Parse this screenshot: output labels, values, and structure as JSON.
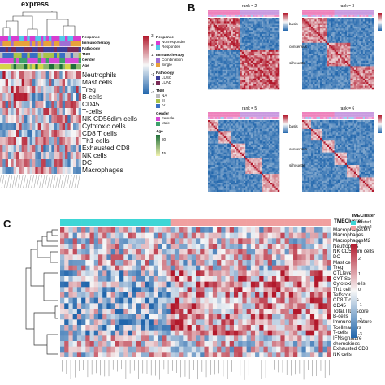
{
  "panels": {
    "a": {
      "top_text": "express"
    },
    "b": {
      "letter": "B"
    },
    "c": {
      "letter": "C"
    }
  },
  "panel_a": {
    "annotation_tracks": [
      "Response",
      "Immunotherapy",
      "Pathology",
      "TNM",
      "Gender",
      "Age"
    ],
    "rows": [
      "Neutrophils",
      "Mast cells",
      "Treg",
      "B-cells",
      "CD45",
      "T-cells",
      "NK CD56dim cells",
      "Cytotoxic cells",
      "CD8 T cells",
      "Th1 cells",
      "Exhausted CD8",
      "NK cells",
      "DC",
      "Macrophages"
    ],
    "legend": {
      "scale_ticks": [
        "3",
        "2",
        "1",
        "0",
        "-1",
        "-2",
        "-3"
      ],
      "groups": [
        {
          "title": "Response",
          "items": [
            "Nonresponder",
            "Responder"
          ]
        },
        {
          "title": "Immunotherapy",
          "items": [
            "Combination",
            "Single"
          ]
        },
        {
          "title": "Pathology",
          "items": [
            "LUSC",
            "LUAD"
          ]
        },
        {
          "title": "TNM",
          "items": [
            "NA",
            "III",
            "IV"
          ]
        },
        {
          "title": "Gender",
          "items": [
            "Female",
            "Male"
          ]
        },
        {
          "title": "Age",
          "items": [
            "80",
            "45"
          ]
        }
      ]
    },
    "colors": {
      "response": "#d63dd0",
      "immunotherapy": "#9f6fd4",
      "pathology": "#7b2a55",
      "tnm": "#a9c24a",
      "gender": "#3da06a",
      "age": "#d4d44a"
    }
  },
  "panel_b": {
    "subplots": [
      {
        "title": "rank = 2"
      },
      {
        "title": "rank = 3"
      },
      {
        "title": "rank = 5"
      },
      {
        "title": "rank = 6"
      }
    ],
    "legend_labels": [
      "basis",
      "consensus",
      "silhouette"
    ]
  },
  "panel_c": {
    "track_label": "TMECluster",
    "legend_title": "TMECluster",
    "legend_items": [
      "cluster1",
      "cluster2"
    ],
    "scale_ticks": [
      "3",
      "2",
      "1",
      "0",
      "-1",
      "-2",
      "-3"
    ],
    "rows": [
      "MacrophagesM1",
      "Macrophages",
      "MacrophagesM2",
      "Neutrophils",
      "NK CD56dim cells",
      "DC",
      "Mast cells",
      "Treg",
      "CTLlevels",
      "CYT Score",
      "Cytotoxic cells",
      "Th1 cells",
      "Teffscore",
      "CD8 T cells",
      "CD45",
      "Total.TILs.score",
      "B-cells",
      "Immunesignature",
      "Tcellmarkers",
      "T-cells",
      "IFNsignature",
      "chemokines",
      "Exhausted CD8",
      "NK cells"
    ],
    "colors": {
      "cluster1": "#3ed6d6",
      "cluster2": "#f0a0a0"
    }
  }
}
